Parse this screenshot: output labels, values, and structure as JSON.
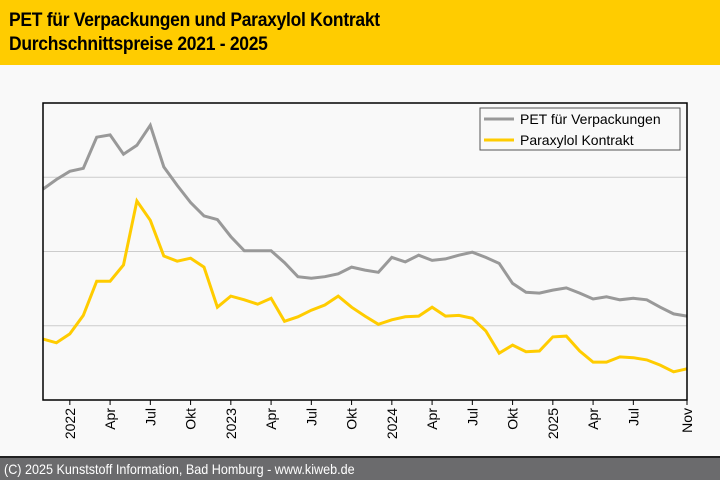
{
  "header": {
    "title_line1": "PET für Verpackungen und Paraxylol Kontrakt",
    "title_line2": "Durchschnittspreise 2021 - 2025"
  },
  "footer": {
    "copyright": "(C) 2025 Kunststoff Information, Bad Homburg - www.kiweb.de"
  },
  "colors": {
    "header_bg": "#ffcc00",
    "pet": "#999999",
    "paraxylol": "#ffcc00",
    "footer_bg": "#6b6b6d"
  },
  "chart_data": {
    "type": "line",
    "title": "PET für Verpackungen und Paraxylol Kontrakt Durchschnittspreise 2021 - 2025",
    "xlabel": "",
    "ylabel": "",
    "x_start": "2021-11",
    "x_end": "2025-11",
    "x_step": "month",
    "ylim": [
      0,
      4
    ],
    "y_gridlines": [
      1,
      2,
      3
    ],
    "y_tick_labels_shown": false,
    "grid": true,
    "legend_position": "top-right",
    "x_ticks": [
      {
        "index": 2,
        "label": "2022"
      },
      {
        "index": 5,
        "label": "Apr"
      },
      {
        "index": 8,
        "label": "Jul"
      },
      {
        "index": 11,
        "label": "Okt"
      },
      {
        "index": 14,
        "label": "2023"
      },
      {
        "index": 17,
        "label": "Apr"
      },
      {
        "index": 20,
        "label": "Jul"
      },
      {
        "index": 23,
        "label": "Okt"
      },
      {
        "index": 26,
        "label": "2024"
      },
      {
        "index": 29,
        "label": "Apr"
      },
      {
        "index": 32,
        "label": "Jul"
      },
      {
        "index": 35,
        "label": "Okt"
      },
      {
        "index": 38,
        "label": "2025"
      },
      {
        "index": 41,
        "label": "Apr"
      },
      {
        "index": 44,
        "label": "Jul"
      },
      {
        "index": 48,
        "label": "Nov"
      }
    ],
    "series": [
      {
        "name": "PET für Verpackungen",
        "color": "#999999",
        "values": [
          2.84,
          2.97,
          3.08,
          3.12,
          3.54,
          3.57,
          3.31,
          3.43,
          3.7,
          3.14,
          2.89,
          2.66,
          2.48,
          2.43,
          2.2,
          2.01,
          2.01,
          2.01,
          1.85,
          1.66,
          1.64,
          1.66,
          1.7,
          1.79,
          1.75,
          1.72,
          1.92,
          1.86,
          1.95,
          1.88,
          1.9,
          1.95,
          1.99,
          1.92,
          1.84,
          1.57,
          1.45,
          1.44,
          1.48,
          1.51,
          1.44,
          1.36,
          1.39,
          1.35,
          1.37,
          1.35,
          1.25,
          1.16,
          1.13
        ]
      },
      {
        "name": "Paraxylol Kontrakt",
        "color": "#ffcc00",
        "values": [
          0.82,
          0.77,
          0.89,
          1.14,
          1.6,
          1.6,
          1.82,
          2.68,
          2.42,
          1.94,
          1.87,
          1.91,
          1.79,
          1.25,
          1.4,
          1.35,
          1.29,
          1.37,
          1.06,
          1.12,
          1.21,
          1.28,
          1.4,
          1.25,
          1.13,
          1.02,
          1.08,
          1.12,
          1.13,
          1.25,
          1.13,
          1.14,
          1.1,
          0.93,
          0.63,
          0.74,
          0.65,
          0.66,
          0.85,
          0.86,
          0.66,
          0.51,
          0.51,
          0.58,
          0.57,
          0.54,
          0.47,
          0.38,
          0.42
        ]
      }
    ]
  }
}
